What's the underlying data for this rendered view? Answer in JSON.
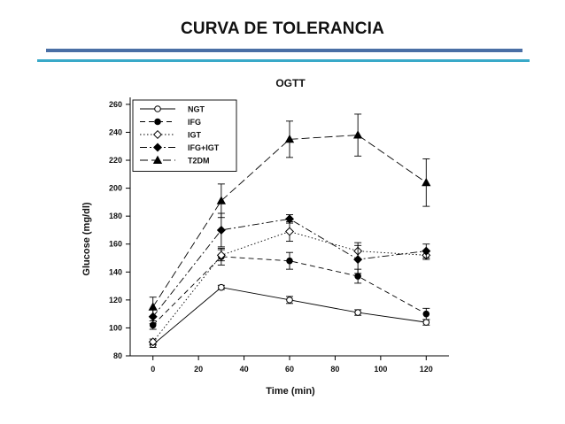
{
  "slide": {
    "title": "CURVA DE TOLERANCIA",
    "accent_colors": [
      "#4a6fa5",
      "#39a9c8"
    ]
  },
  "chart_data": {
    "type": "line",
    "title": "OGTT",
    "xlabel": "Time (min)",
    "ylabel": "Glucose (mg/dl)",
    "xlim": [
      -10,
      130
    ],
    "ylim": [
      80,
      265
    ],
    "xticks": [
      0,
      20,
      40,
      60,
      80,
      100,
      120
    ],
    "yticks": [
      80,
      100,
      120,
      140,
      160,
      180,
      200,
      220,
      240,
      260
    ],
    "x": [
      0,
      30,
      60,
      90,
      120
    ],
    "grid": false,
    "legend_position": "top-left",
    "series": [
      {
        "name": "NGT",
        "marker": "circle-open",
        "line": "solid",
        "values": [
          88,
          129,
          120,
          111,
          104
        ],
        "err": [
          2,
          1.5,
          2.5,
          2,
          2
        ]
      },
      {
        "name": "IFG",
        "marker": "circle-filled",
        "line": "dashed",
        "values": [
          102,
          151,
          148,
          137,
          110
        ],
        "err": [
          3,
          6,
          6,
          5,
          4
        ]
      },
      {
        "name": "IGT",
        "marker": "diamond-open",
        "line": "dotted",
        "values": [
          90,
          152,
          169,
          155,
          152
        ],
        "err": [
          2,
          4,
          7,
          6,
          3
        ]
      },
      {
        "name": "IFG+IGT",
        "marker": "diamond-filled",
        "line": "dashdot",
        "values": [
          108,
          170,
          178,
          149,
          155
        ],
        "err": [
          5,
          12,
          3,
          10,
          5
        ]
      },
      {
        "name": "T2DM",
        "marker": "triangle-filled",
        "line": "longdash",
        "values": [
          115,
          191,
          235,
          238,
          204
        ],
        "err": [
          7,
          12,
          13,
          15,
          17
        ]
      }
    ]
  }
}
